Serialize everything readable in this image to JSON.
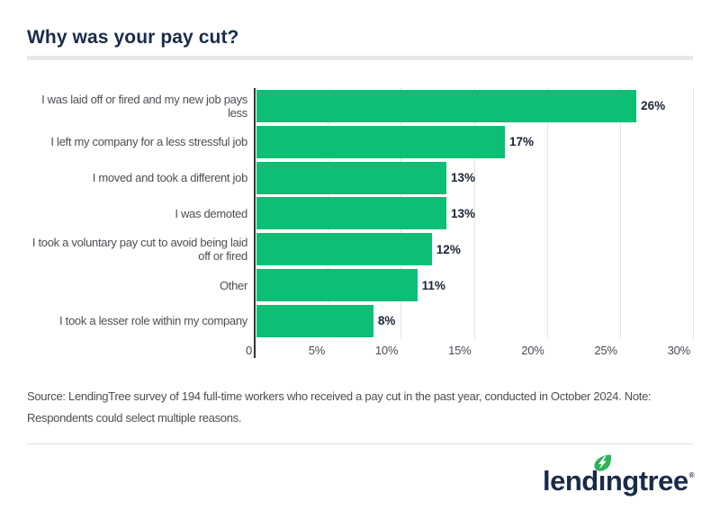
{
  "header": {
    "title": "Why was your pay cut?"
  },
  "chart_data": {
    "type": "bar",
    "orientation": "horizontal",
    "title": "Why was your pay cut?",
    "categories": [
      "I was laid off or fired and my new job pays less",
      "I left my company for a less stressful job",
      "I moved and took a different job",
      "I was demoted",
      "I took a voluntary pay cut to avoid being laid off or fired",
      "Other",
      "I took a lesser role within my company"
    ],
    "values": [
      26,
      17,
      13,
      13,
      12,
      11,
      8
    ],
    "value_labels": [
      "26%",
      "17%",
      "13%",
      "13%",
      "12%",
      "11%",
      "8%"
    ],
    "xlabel": "",
    "ylabel": "",
    "xlim": [
      0,
      30
    ],
    "xticks": [
      {
        "value": 0,
        "label": "0"
      },
      {
        "value": 5,
        "label": "5%"
      },
      {
        "value": 10,
        "label": "10%"
      },
      {
        "value": 15,
        "label": "15%"
      },
      {
        "value": 20,
        "label": "20%"
      },
      {
        "value": 25,
        "label": "25%"
      },
      {
        "value": 30,
        "label": "30%"
      }
    ],
    "grid": true,
    "legend": "none",
    "bar_color": "#0dbe75"
  },
  "source_note": "Source: LendingTree survey of 194 full-time workers who received a pay cut in the past year, conducted in October 2024. Note: Respondents could select multiple reasons.",
  "footer": {
    "logo_text": "lendingtree",
    "registered_mark": "®"
  },
  "colors": {
    "title_navy": "#1a2b49",
    "bar_green": "#0dbe75",
    "leaf_green": "#2eb457",
    "gridline": "#e4e4e4",
    "axis": "#33353b",
    "text_gray": "#4d4f55"
  }
}
